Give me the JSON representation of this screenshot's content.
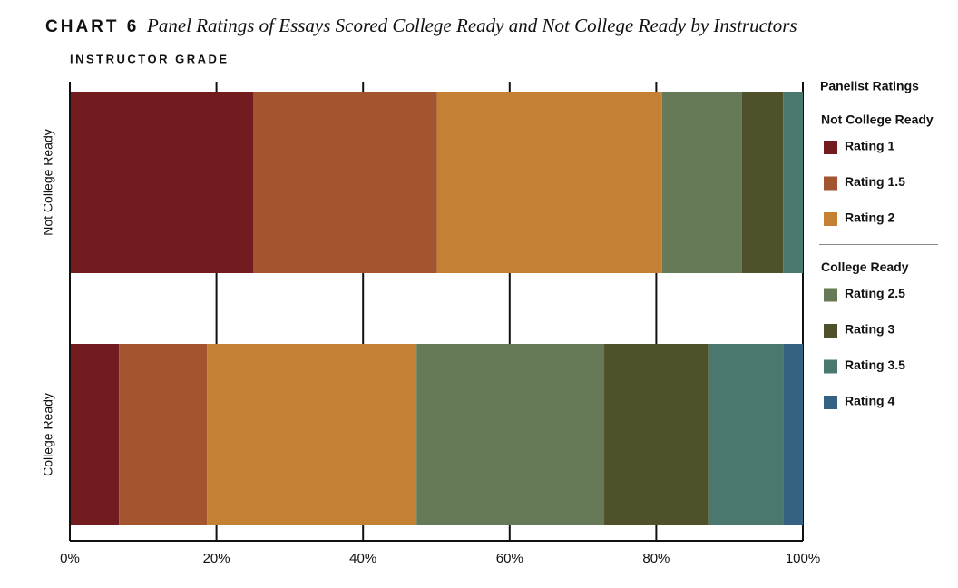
{
  "chart_data": {
    "type": "stacked-bar-horizontal",
    "label": "CHART 6",
    "title": "Panel Ratings of Essays Scored College Ready and Not College Ready by Instructors",
    "subtitle": "INSTRUCTOR GRADE",
    "categories": [
      "Not College Ready",
      "College Ready"
    ],
    "series": [
      {
        "name": "Rating 1",
        "color": "#731c20",
        "values": [
          25.0,
          6.7
        ]
      },
      {
        "name": "Rating 1.5",
        "color": "#a3552f",
        "values": [
          25.1,
          12.0
        ]
      },
      {
        "name": "Rating 2",
        "color": "#c48033",
        "values": [
          30.7,
          28.6
        ]
      },
      {
        "name": "Rating 2.5",
        "color": "#667a58",
        "values": [
          10.9,
          25.6
        ]
      },
      {
        "name": "Rating 3",
        "color": "#4f512b",
        "values": [
          5.6,
          14.2
        ]
      },
      {
        "name": "Rating 3.5",
        "color": "#4a786e",
        "values": [
          2.7,
          10.2
        ]
      },
      {
        "name": "Rating 4",
        "color": "#356282",
        "values": [
          0,
          2.7
        ]
      }
    ],
    "xlim": [
      0,
      100
    ],
    "xticks": [
      {
        "value": 0,
        "label": "0%"
      },
      {
        "value": 20,
        "label": "20%"
      },
      {
        "value": 40,
        "label": "40%"
      },
      {
        "value": 60,
        "label": "60%"
      },
      {
        "value": 80,
        "label": "80%"
      },
      {
        "value": 100,
        "label": "100%"
      }
    ],
    "grid": true,
    "legend": {
      "title": "Panelist Ratings",
      "groups": [
        {
          "title": "Not College Ready",
          "series": [
            0,
            1,
            2
          ]
        },
        {
          "title": "College Ready",
          "series": [
            3,
            4,
            5,
            6
          ]
        }
      ]
    }
  }
}
